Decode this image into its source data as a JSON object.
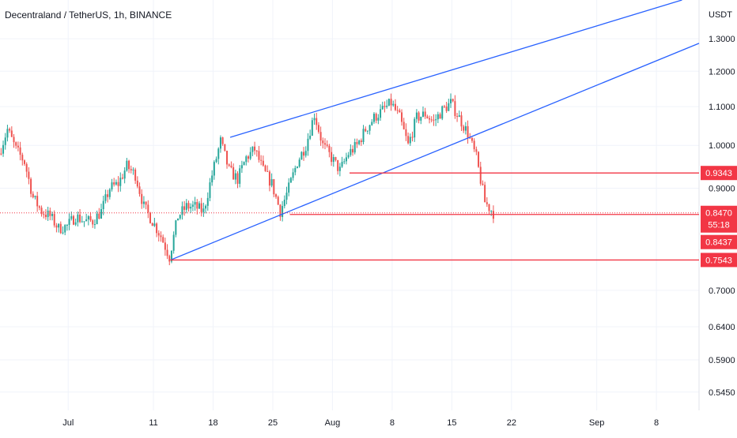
{
  "header": {
    "symbol_title": "Decentraland / TetherUS, 1h, BINANCE"
  },
  "colors": {
    "candle_up": "#26a69a",
    "candle_down": "#ef5350",
    "trendline": "#2962ff",
    "level_line": "#f23645",
    "price_line": "#f23645",
    "grid": "#f0f3fa",
    "axis_text": "#131722",
    "label_bg": "#f23645",
    "label_text": "#ffffff"
  },
  "chart_data": {
    "type": "candlestick",
    "title": "Decentraland / TetherUS, 1h, BINANCE",
    "y_axis_unit": "USDT",
    "y_scale": "log",
    "ylim": [
      0.521,
      1.43
    ],
    "x_range": [
      "2022-06-23",
      "2022-09-13"
    ],
    "grid": true,
    "x_ticks": [
      {
        "date": "2022-07-01",
        "label": "Jul"
      },
      {
        "date": "2022-07-11",
        "label": "11"
      },
      {
        "date": "2022-07-18",
        "label": "18"
      },
      {
        "date": "2022-07-25",
        "label": "25"
      },
      {
        "date": "2022-08-01",
        "label": "Aug"
      },
      {
        "date": "2022-08-08",
        "label": "8"
      },
      {
        "date": "2022-08-15",
        "label": "15"
      },
      {
        "date": "2022-08-22",
        "label": "22"
      },
      {
        "date": "2022-09-01",
        "label": "Sep"
      },
      {
        "date": "2022-09-08",
        "label": "8"
      }
    ],
    "y_ticks": [
      "1.3000",
      "1.2000",
      "1.1000",
      "1.0000",
      "0.9000",
      "0.7000",
      "0.6400",
      "0.5900",
      "0.5450"
    ],
    "price_path": [
      {
        "t": "2022-06-23",
        "p": 0.98
      },
      {
        "t": "2022-06-24",
        "p": 1.04
      },
      {
        "t": "2022-06-25",
        "p": 0.99
      },
      {
        "t": "2022-06-26",
        "p": 0.96
      },
      {
        "t": "2022-06-27",
        "p": 0.88
      },
      {
        "t": "2022-06-28",
        "p": 0.85
      },
      {
        "t": "2022-06-29",
        "p": 0.84
      },
      {
        "t": "2022-06-30",
        "p": 0.815
      },
      {
        "t": "2022-07-01",
        "p": 0.82
      },
      {
        "t": "2022-07-02",
        "p": 0.84
      },
      {
        "t": "2022-07-03",
        "p": 0.83
      },
      {
        "t": "2022-07-04",
        "p": 0.83
      },
      {
        "t": "2022-07-05",
        "p": 0.85
      },
      {
        "t": "2022-07-06",
        "p": 0.9
      },
      {
        "t": "2022-07-07",
        "p": 0.91
      },
      {
        "t": "2022-07-08",
        "p": 0.95
      },
      {
        "t": "2022-07-09",
        "p": 0.93
      },
      {
        "t": "2022-07-10",
        "p": 0.86
      },
      {
        "t": "2022-07-11",
        "p": 0.83
      },
      {
        "t": "2022-07-12",
        "p": 0.8
      },
      {
        "t": "2022-07-13",
        "p": 0.76
      },
      {
        "t": "2022-07-14",
        "p": 0.84
      },
      {
        "t": "2022-07-15",
        "p": 0.86
      },
      {
        "t": "2022-07-16",
        "p": 0.86
      },
      {
        "t": "2022-07-17",
        "p": 0.85
      },
      {
        "t": "2022-07-18",
        "p": 0.93
      },
      {
        "t": "2022-07-19",
        "p": 1.01
      },
      {
        "t": "2022-07-20",
        "p": 0.94
      },
      {
        "t": "2022-07-21",
        "p": 0.92
      },
      {
        "t": "2022-07-22",
        "p": 0.97
      },
      {
        "t": "2022-07-23",
        "p": 0.99
      },
      {
        "t": "2022-07-24",
        "p": 0.94
      },
      {
        "t": "2022-07-25",
        "p": 0.91
      },
      {
        "t": "2022-07-26",
        "p": 0.85
      },
      {
        "t": "2022-07-27",
        "p": 0.9
      },
      {
        "t": "2022-07-28",
        "p": 0.96
      },
      {
        "t": "2022-07-29",
        "p": 1.0
      },
      {
        "t": "2022-07-30",
        "p": 1.08
      },
      {
        "t": "2022-07-31",
        "p": 1.0
      },
      {
        "t": "2022-08-01",
        "p": 0.97
      },
      {
        "t": "2022-08-02",
        "p": 0.94
      },
      {
        "t": "2022-08-03",
        "p": 0.98
      },
      {
        "t": "2022-08-04",
        "p": 1.0
      },
      {
        "t": "2022-08-05",
        "p": 1.04
      },
      {
        "t": "2022-08-06",
        "p": 1.07
      },
      {
        "t": "2022-08-07",
        "p": 1.09
      },
      {
        "t": "2022-08-08",
        "p": 1.11
      },
      {
        "t": "2022-08-09",
        "p": 1.07
      },
      {
        "t": "2022-08-10",
        "p": 1.0
      },
      {
        "t": "2022-08-11",
        "p": 1.07
      },
      {
        "t": "2022-08-12",
        "p": 1.08
      },
      {
        "t": "2022-08-13",
        "p": 1.06
      },
      {
        "t": "2022-08-14",
        "p": 1.09
      },
      {
        "t": "2022-08-15",
        "p": 1.11
      },
      {
        "t": "2022-08-16",
        "p": 1.07
      },
      {
        "t": "2022-08-17",
        "p": 1.03
      },
      {
        "t": "2022-08-18",
        "p": 0.97
      },
      {
        "t": "2022-08-19",
        "p": 0.87
      },
      {
        "t": "2022-08-20",
        "p": 0.847
      }
    ],
    "trendlines": [
      {
        "name": "channel-upper",
        "from": {
          "t": "2022-07-20",
          "p": 1.02
        },
        "to": {
          "t": "2022-09-11",
          "p": 1.43
        }
      },
      {
        "name": "channel-lower",
        "from": {
          "t": "2022-07-13",
          "p": 0.7543
        },
        "to": {
          "t": "2022-09-13",
          "p": 1.2854
        }
      }
    ],
    "horizontal_levels": [
      {
        "price": 0.9343,
        "from": "2022-08-03",
        "label": "0.9343"
      },
      {
        "price": 0.8437,
        "from": "2022-07-27",
        "label": "0.8437"
      },
      {
        "price": 0.7543,
        "from": "2022-07-13",
        "label": "0.7543"
      }
    ],
    "current_price": {
      "price": 0.847,
      "label": "0.8470",
      "countdown": "55:18"
    }
  }
}
